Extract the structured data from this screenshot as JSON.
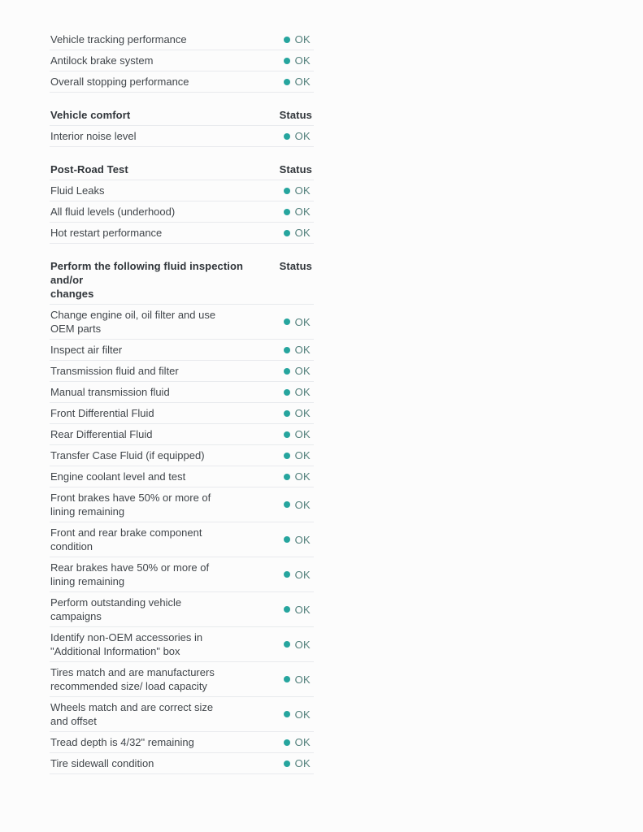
{
  "colors": {
    "status_dot": "#26a59e",
    "status_text": "#53807c",
    "label_text": "#41464b",
    "header_text": "#30353a",
    "divider": "#e8eaed",
    "page_bg": "#fcfcfc"
  },
  "status_column_label": "Status",
  "sections": [
    {
      "header": null,
      "rows": [
        {
          "label": "Vehicle tracking performance",
          "status": "OK"
        },
        {
          "label": "Antilock brake system",
          "status": "OK"
        },
        {
          "label": "Overall stopping performance",
          "status": "OK"
        }
      ]
    },
    {
      "header": "Vehicle comfort",
      "rows": [
        {
          "label": "Interior noise level",
          "status": "OK"
        }
      ]
    },
    {
      "header": "Post-Road Test",
      "rows": [
        {
          "label": "Fluid Leaks",
          "status": "OK"
        },
        {
          "label": "All fluid levels (underhood)",
          "status": "OK"
        },
        {
          "label": "Hot restart performance",
          "status": "OK"
        }
      ]
    },
    {
      "header": "Perform the following fluid inspection and/or\nchanges",
      "rows": [
        {
          "label": "Change engine oil, oil filter and use\nOEM parts",
          "status": "OK"
        },
        {
          "label": "Inspect air filter",
          "status": "OK"
        },
        {
          "label": "Transmission fluid and filter",
          "status": "OK"
        },
        {
          "label": "Manual transmission fluid",
          "status": "OK"
        },
        {
          "label": "Front Differential Fluid",
          "status": "OK"
        },
        {
          "label": "Rear Differential Fluid",
          "status": "OK"
        },
        {
          "label": "Transfer Case Fluid (if equipped)",
          "status": "OK"
        },
        {
          "label": "Engine coolant level and test",
          "status": "OK"
        },
        {
          "label": "Front brakes have 50% or more of\nlining remaining",
          "status": "OK"
        },
        {
          "label": "Front and rear brake component\ncondition",
          "status": "OK"
        },
        {
          "label": "Rear brakes have 50% or more of\nlining remaining",
          "status": "OK"
        },
        {
          "label": "Perform outstanding vehicle\ncampaigns",
          "status": "OK"
        },
        {
          "label": "Identify non-OEM accessories in\n\"Additional Information\" box",
          "status": "OK"
        },
        {
          "label": "Tires match and are manufacturers\nrecommended size/ load capacity",
          "status": "OK"
        },
        {
          "label": "Wheels match and are correct size\nand offset",
          "status": "OK"
        },
        {
          "label": "Tread depth is 4/32\" remaining",
          "status": "OK"
        },
        {
          "label": "Tire sidewall condition",
          "status": "OK"
        }
      ]
    }
  ]
}
